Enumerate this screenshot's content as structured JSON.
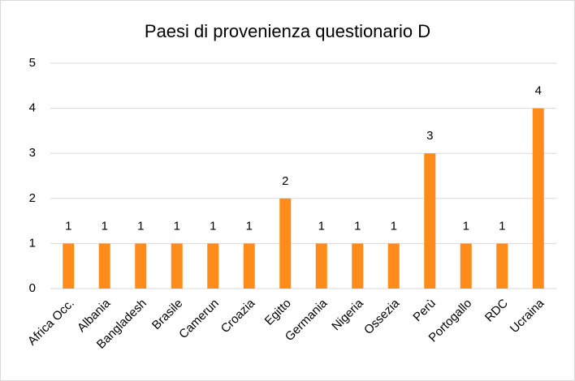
{
  "chart_data": {
    "type": "bar",
    "title": "Paesi di provenienza questionario D",
    "categories": [
      "Africa Occ.",
      "Albania",
      "Bangladesh",
      "Brasile",
      "Camerun",
      "Croazia",
      "Egitto",
      "Germania",
      "Nigeria",
      "Ossezia",
      "Perù",
      "Portogallo",
      "RDC",
      "Ucraina"
    ],
    "values": [
      1,
      1,
      1,
      1,
      1,
      1,
      2,
      1,
      1,
      1,
      3,
      1,
      1,
      4
    ],
    "color": "#ff8c1a",
    "ylim": [
      0,
      5
    ],
    "yticks": [
      0,
      1,
      2,
      3,
      4,
      5
    ],
    "grid": true,
    "data_labels": true
  }
}
